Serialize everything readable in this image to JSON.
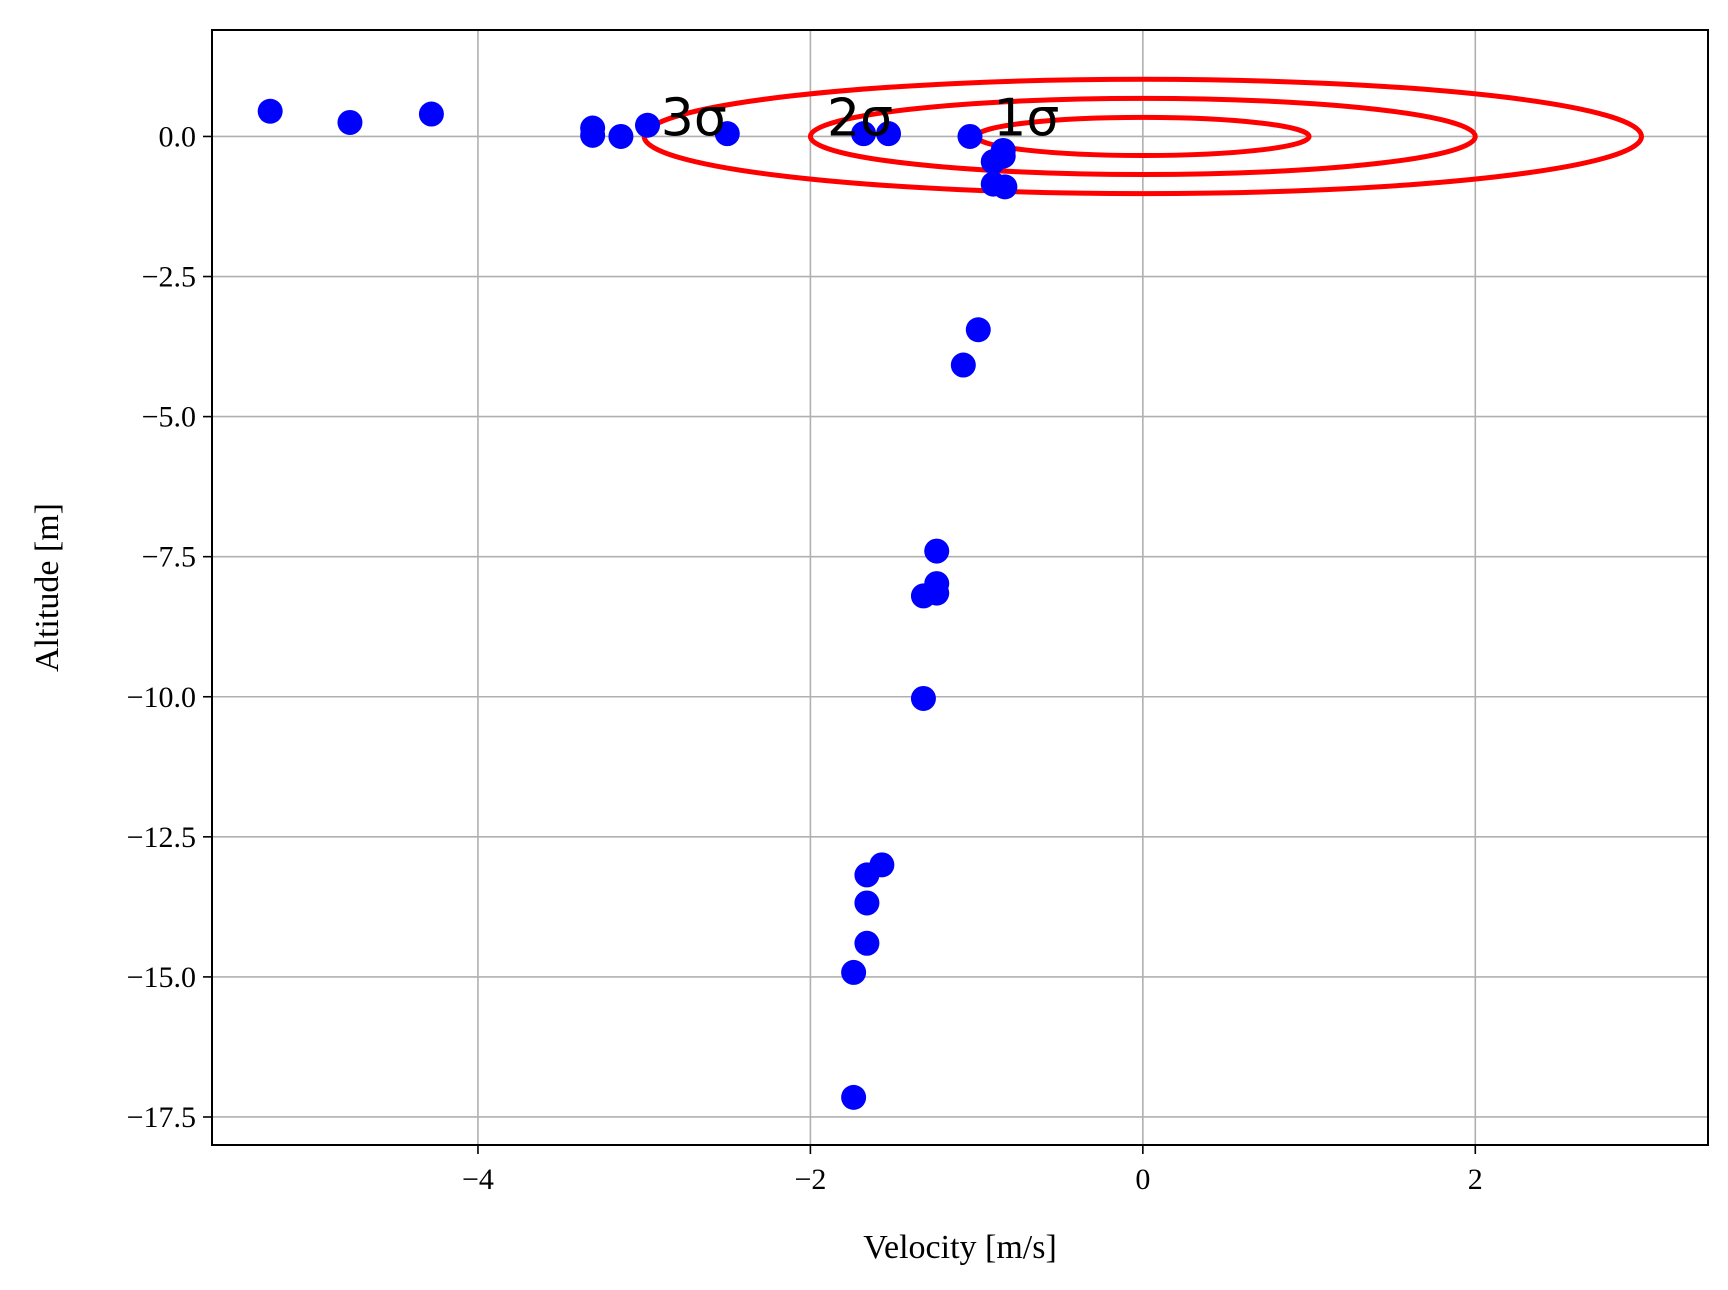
{
  "chart_data": {
    "type": "scatter",
    "xlabel": "Velocity [m/s]",
    "ylabel": "Altitude [m]",
    "xlim": [
      -5.6,
      3.4
    ],
    "ylim": [
      -18,
      1.9
    ],
    "grid": true,
    "xticks": [
      {
        "value": -4,
        "label": "−4"
      },
      {
        "value": -2,
        "label": "−2"
      },
      {
        "value": 0,
        "label": "0"
      },
      {
        "value": 2,
        "label": "2"
      }
    ],
    "yticks": [
      {
        "value": 0,
        "label": "0.0"
      },
      {
        "value": -2.5,
        "label": "−2.5"
      },
      {
        "value": -5,
        "label": "−5.0"
      },
      {
        "value": -7.5,
        "label": "−7.5"
      },
      {
        "value": -10,
        "label": "−10.0"
      },
      {
        "value": -12.5,
        "label": "−12.5"
      },
      {
        "value": -15,
        "label": "−15.0"
      },
      {
        "value": -17.5,
        "label": "−17.5"
      }
    ],
    "points_color": "#0000ff",
    "points": [
      {
        "x": -5.25,
        "y": 0.45
      },
      {
        "x": -4.77,
        "y": 0.25
      },
      {
        "x": -4.28,
        "y": 0.4
      },
      {
        "x": -3.31,
        "y": 0.15
      },
      {
        "x": -3.31,
        "y": 0.02
      },
      {
        "x": -3.14,
        "y": 0.0
      },
      {
        "x": -2.98,
        "y": 0.2
      },
      {
        "x": -2.5,
        "y": 0.05
      },
      {
        "x": -1.68,
        "y": 0.05
      },
      {
        "x": -1.53,
        "y": 0.05
      },
      {
        "x": -1.04,
        "y": 0.0
      },
      {
        "x": -0.84,
        "y": -0.25
      },
      {
        "x": -0.84,
        "y": -0.35
      },
      {
        "x": -0.9,
        "y": -0.45
      },
      {
        "x": -0.9,
        "y": -0.85
      },
      {
        "x": -0.83,
        "y": -0.9
      },
      {
        "x": -0.99,
        "y": -3.45
      },
      {
        "x": -1.08,
        "y": -4.08
      },
      {
        "x": -1.24,
        "y": -7.4
      },
      {
        "x": -1.24,
        "y": -7.98
      },
      {
        "x": -1.24,
        "y": -8.15
      },
      {
        "x": -1.32,
        "y": -8.2
      },
      {
        "x": -1.32,
        "y": -10.03
      },
      {
        "x": -1.57,
        "y": -13.0
      },
      {
        "x": -1.66,
        "y": -13.18
      },
      {
        "x": -1.66,
        "y": -13.68
      },
      {
        "x": -1.66,
        "y": -14.4
      },
      {
        "x": -1.74,
        "y": -14.92
      },
      {
        "x": -1.74,
        "y": -17.15
      }
    ],
    "ellipses_color": "#ff0000",
    "ellipses": [
      {
        "label": "1σ",
        "cx": 0,
        "cy": 0,
        "rx": 1,
        "ry": 0.34
      },
      {
        "label": "2σ",
        "cx": 0,
        "cy": 0,
        "rx": 2,
        "ry": 0.68
      },
      {
        "label": "3σ",
        "cx": 0,
        "cy": 0,
        "rx": 3,
        "ry": 1.02
      }
    ],
    "annotations": [
      {
        "text": "3σ",
        "x": -2.9,
        "y": 0.2
      },
      {
        "text": "2σ",
        "x": -1.9,
        "y": 0.2
      },
      {
        "text": "1σ",
        "x": -0.9,
        "y": 0.2
      }
    ]
  }
}
